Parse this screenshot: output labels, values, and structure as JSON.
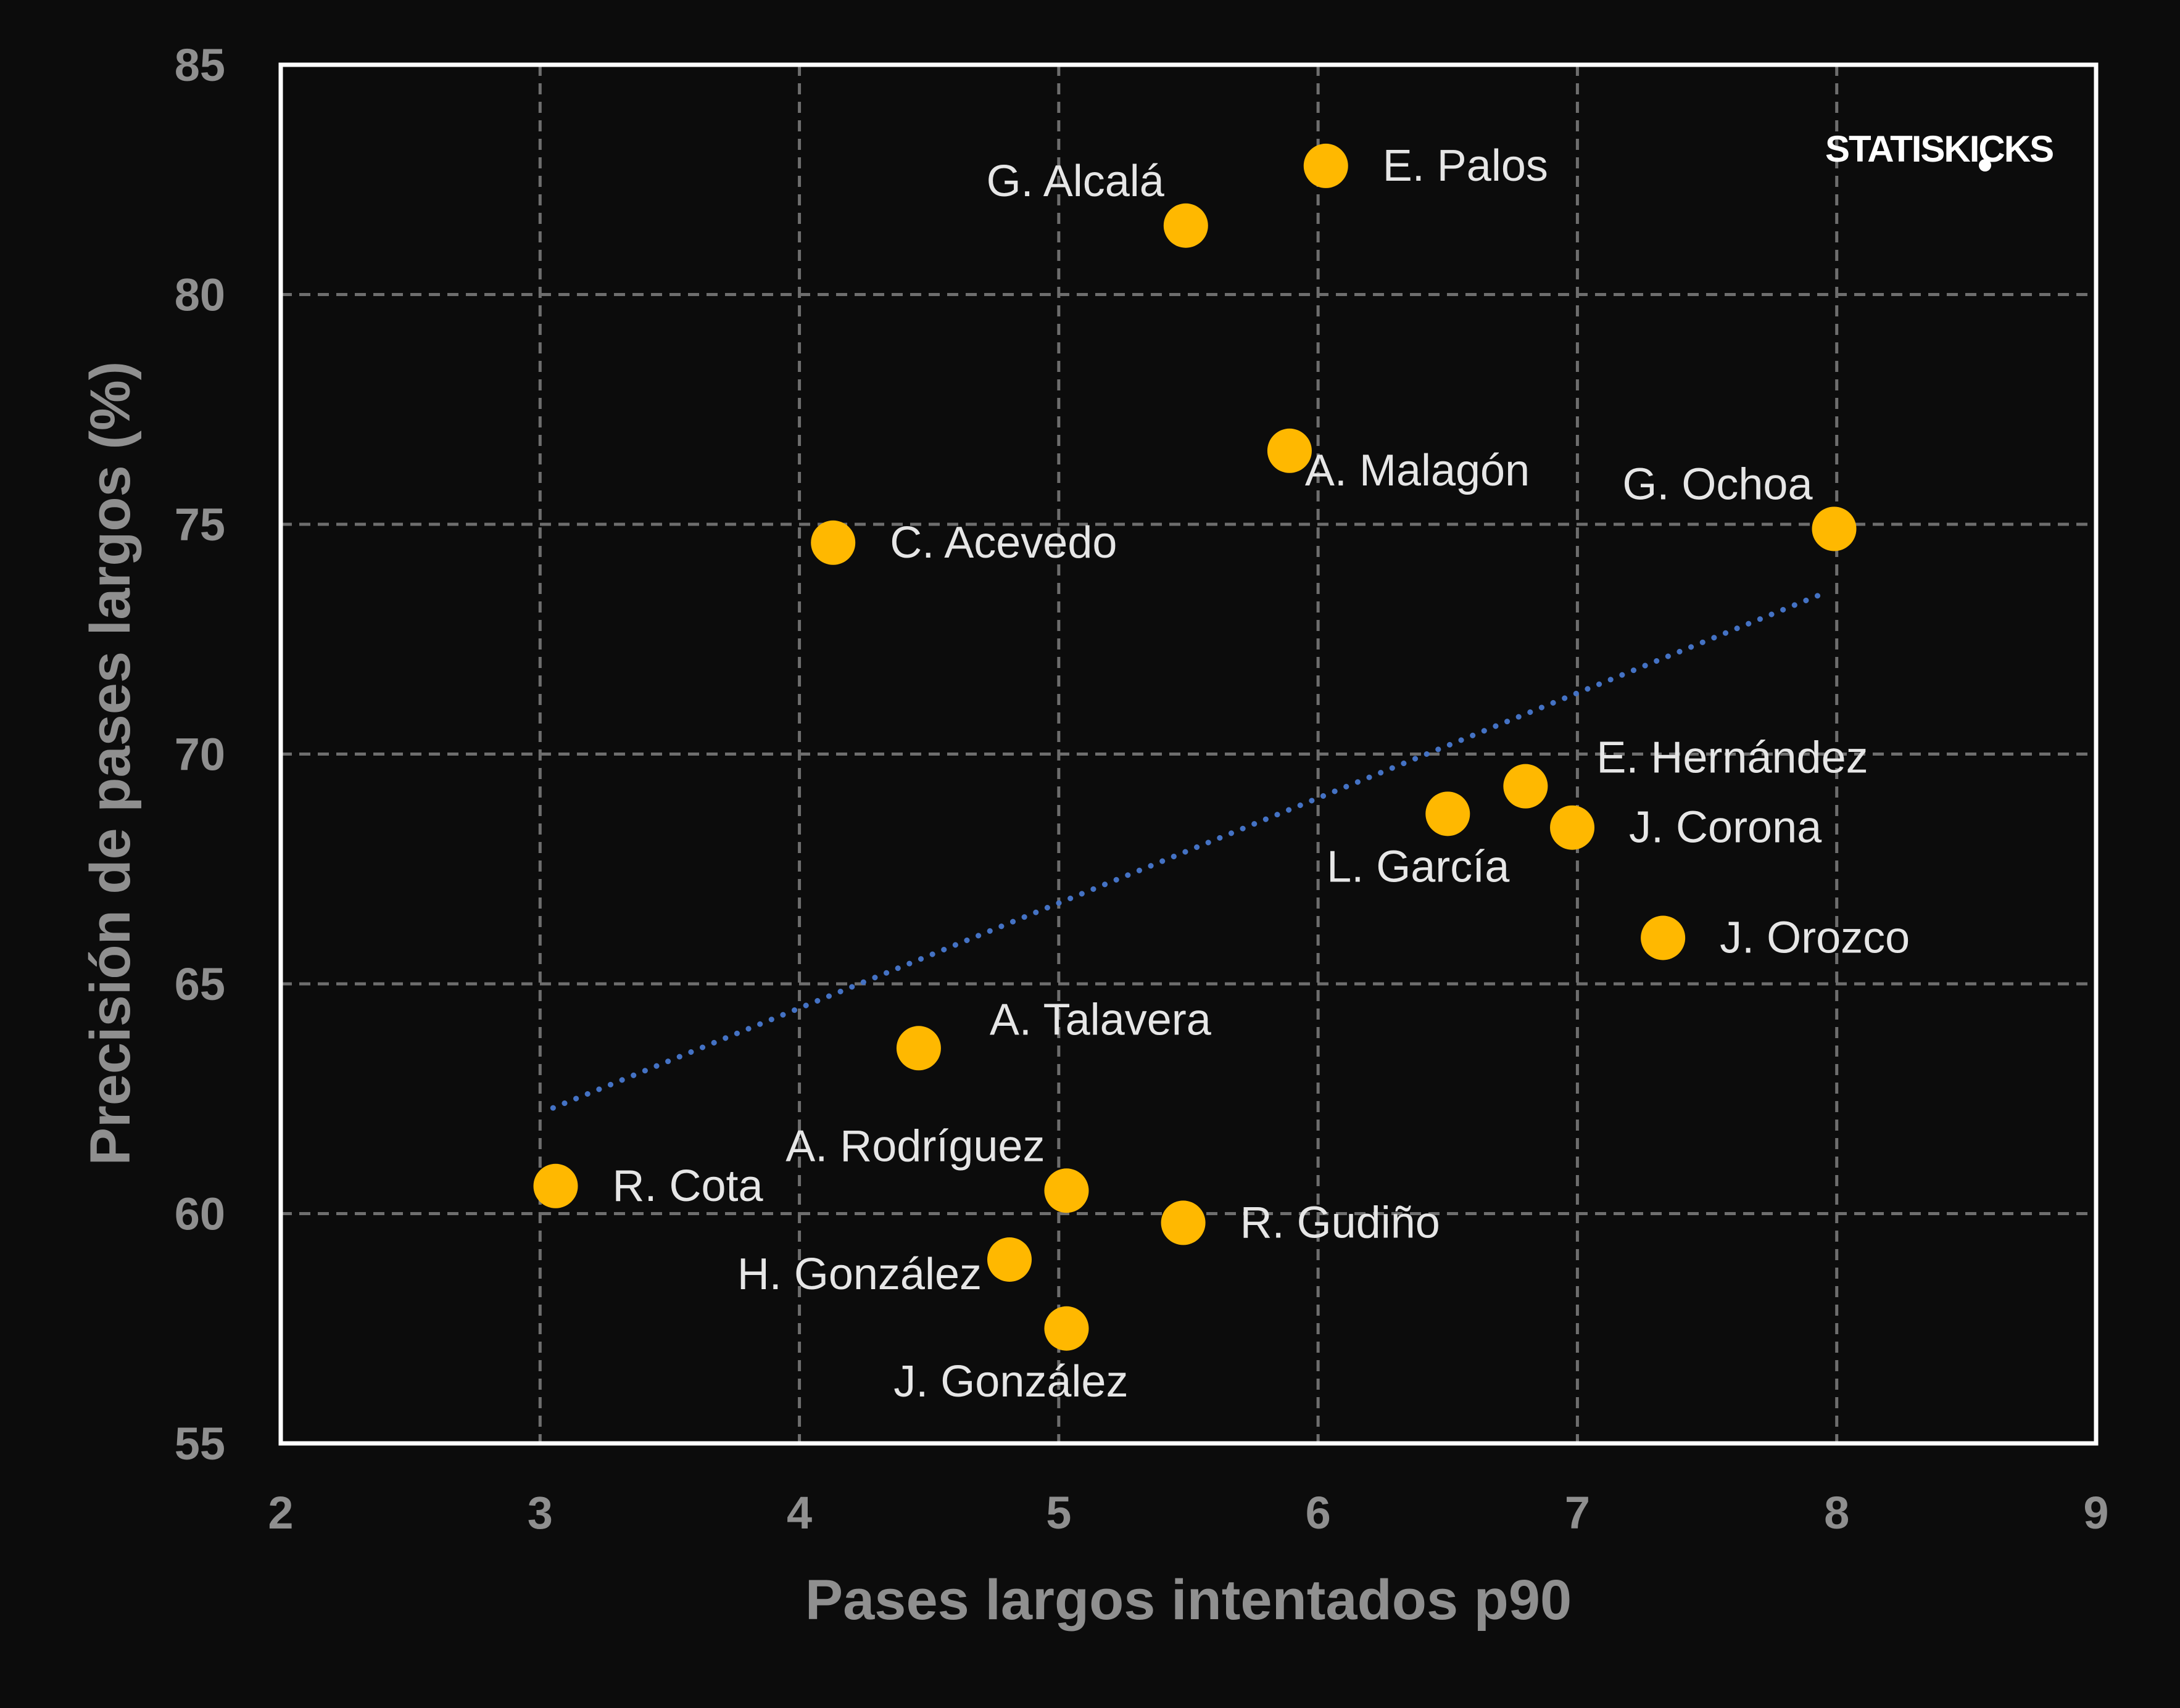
{
  "chart_data": {
    "type": "scatter",
    "title": "",
    "xlabel": "Pases largos intentados p90",
    "ylabel": "Precisión de pases largos (%)",
    "xlim": [
      2,
      9
    ],
    "ylim": [
      55,
      85
    ],
    "xticks": [
      2,
      3,
      4,
      5,
      6,
      7,
      8,
      9
    ],
    "yticks": [
      55,
      60,
      65,
      70,
      75,
      80,
      85
    ],
    "grid": true,
    "points": [
      {
        "label": "E. Palos",
        "x": 6.03,
        "y": 82.8,
        "label_pos": "right"
      },
      {
        "label": "G. Alcalá",
        "x": 5.49,
        "y": 81.5,
        "label_pos": "upper-left"
      },
      {
        "label": "A. Malagón",
        "x": 5.89,
        "y": 76.6,
        "label_pos": "lower-right"
      },
      {
        "label": "G. Ochoa",
        "x": 7.99,
        "y": 74.9,
        "label_pos": "upper-left"
      },
      {
        "label": "C. Acevedo",
        "x": 4.13,
        "y": 74.6,
        "label_pos": "right"
      },
      {
        "label": "E. Hernández",
        "x": 6.8,
        "y": 69.3,
        "label_pos": "upper-right"
      },
      {
        "label": "L. García",
        "x": 6.5,
        "y": 68.7,
        "label_pos": "below-left"
      },
      {
        "label": "J. Corona",
        "x": 6.98,
        "y": 68.4,
        "label_pos": "right"
      },
      {
        "label": "J. Orozco",
        "x": 7.33,
        "y": 66.0,
        "label_pos": "right"
      },
      {
        "label": "A. Talavera",
        "x": 4.46,
        "y": 63.6,
        "label_pos": "upper-right"
      },
      {
        "label": "R. Cota",
        "x": 3.06,
        "y": 60.6,
        "label_pos": "right"
      },
      {
        "label": "A. Rodríguez",
        "x": 5.03,
        "y": 60.5,
        "label_pos": "upper-left"
      },
      {
        "label": "R. Gudiño",
        "x": 5.48,
        "y": 59.8,
        "label_pos": "right"
      },
      {
        "label": "H. González",
        "x": 4.81,
        "y": 59.0,
        "label_pos": "left"
      },
      {
        "label": "J. González",
        "x": 5.03,
        "y": 57.5,
        "label_pos": "below-left"
      }
    ],
    "trendline": {
      "style": "dotted",
      "x": [
        3.05,
        7.95
      ],
      "y": [
        62.3,
        73.5
      ]
    }
  },
  "watermark": "STATISKICKS",
  "colors": {
    "background": "#0c0c0c",
    "point": "#ffb800",
    "trendline": "#4472c4",
    "frame": "#ffffff",
    "grid": "#6e6e6e",
    "axis_text": "#8f8f8f",
    "label_text": "#e6e6e6"
  }
}
